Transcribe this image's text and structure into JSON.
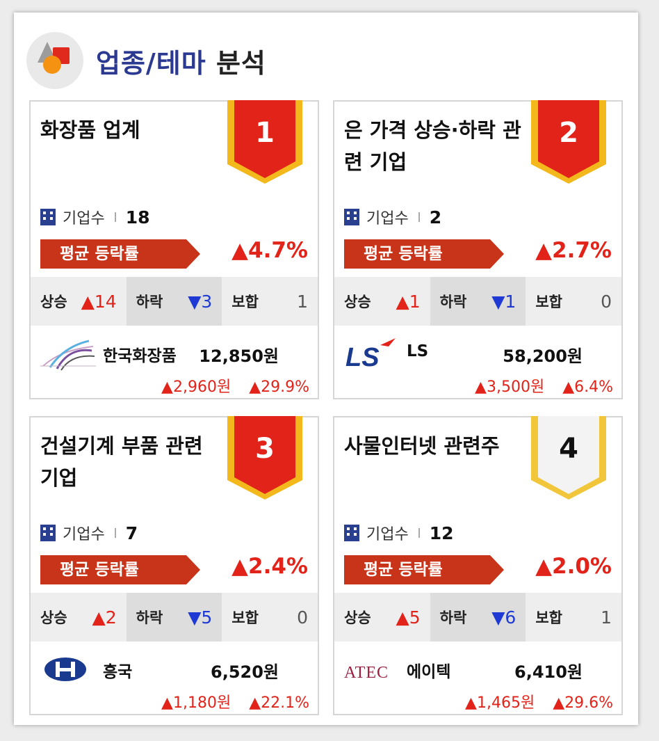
{
  "header": {
    "title_blue": "업종/테마",
    "title_dark": "분석",
    "icon": "theme-shapes-icon"
  },
  "labels": {
    "count": "기업수",
    "avg": "평균 등락률",
    "up": "상승",
    "down": "하락",
    "flat": "보합"
  },
  "colors": {
    "up": "#e2231a",
    "down": "#1f3ad4",
    "accent_blue": "#2b3990",
    "ribbon_red": "#e2231a",
    "tag_red": "#c83419"
  },
  "cards": [
    {
      "title": "화장품 업계",
      "rank": "1",
      "count": "18",
      "avg": "▲4.7%",
      "up": "▲14",
      "down": "▼3",
      "flat": "1",
      "company": {
        "name": "한국화장품",
        "price": "12,850원",
        "change": "▲2,960원",
        "rate": "▲29.9%",
        "logo": "korea-cosmetics-logo"
      }
    },
    {
      "title": "은 가격 상승·하락 관련 기업",
      "rank": "2",
      "count": "2",
      "avg": "▲2.7%",
      "up": "▲1",
      "down": "▼1",
      "flat": "0",
      "company": {
        "name": "LS",
        "price": "58,200원",
        "change": "▲3,500원",
        "rate": "▲6.4%",
        "logo": "ls-logo",
        "logo_text": "LS"
      }
    },
    {
      "title": "건설기계 부품 관련 기업",
      "rank": "3",
      "count": "7",
      "avg": "▲2.4%",
      "up": "▲2",
      "down": "▼5",
      "flat": "0",
      "company": {
        "name": "흥국",
        "price": "6,520원",
        "change": "▲1,180원",
        "rate": "▲22.1%",
        "logo": "heungkuk-logo"
      }
    },
    {
      "title": "사물인터넷 관련주",
      "rank": "4",
      "count": "12",
      "avg": "▲2.0%",
      "up": "▲5",
      "down": "▼6",
      "flat": "1",
      "company": {
        "name": "에이텍",
        "price": "6,410원",
        "change": "▲1,465원",
        "rate": "▲29.6%",
        "logo": "atec-logo",
        "logo_text": "ATEC"
      }
    }
  ]
}
